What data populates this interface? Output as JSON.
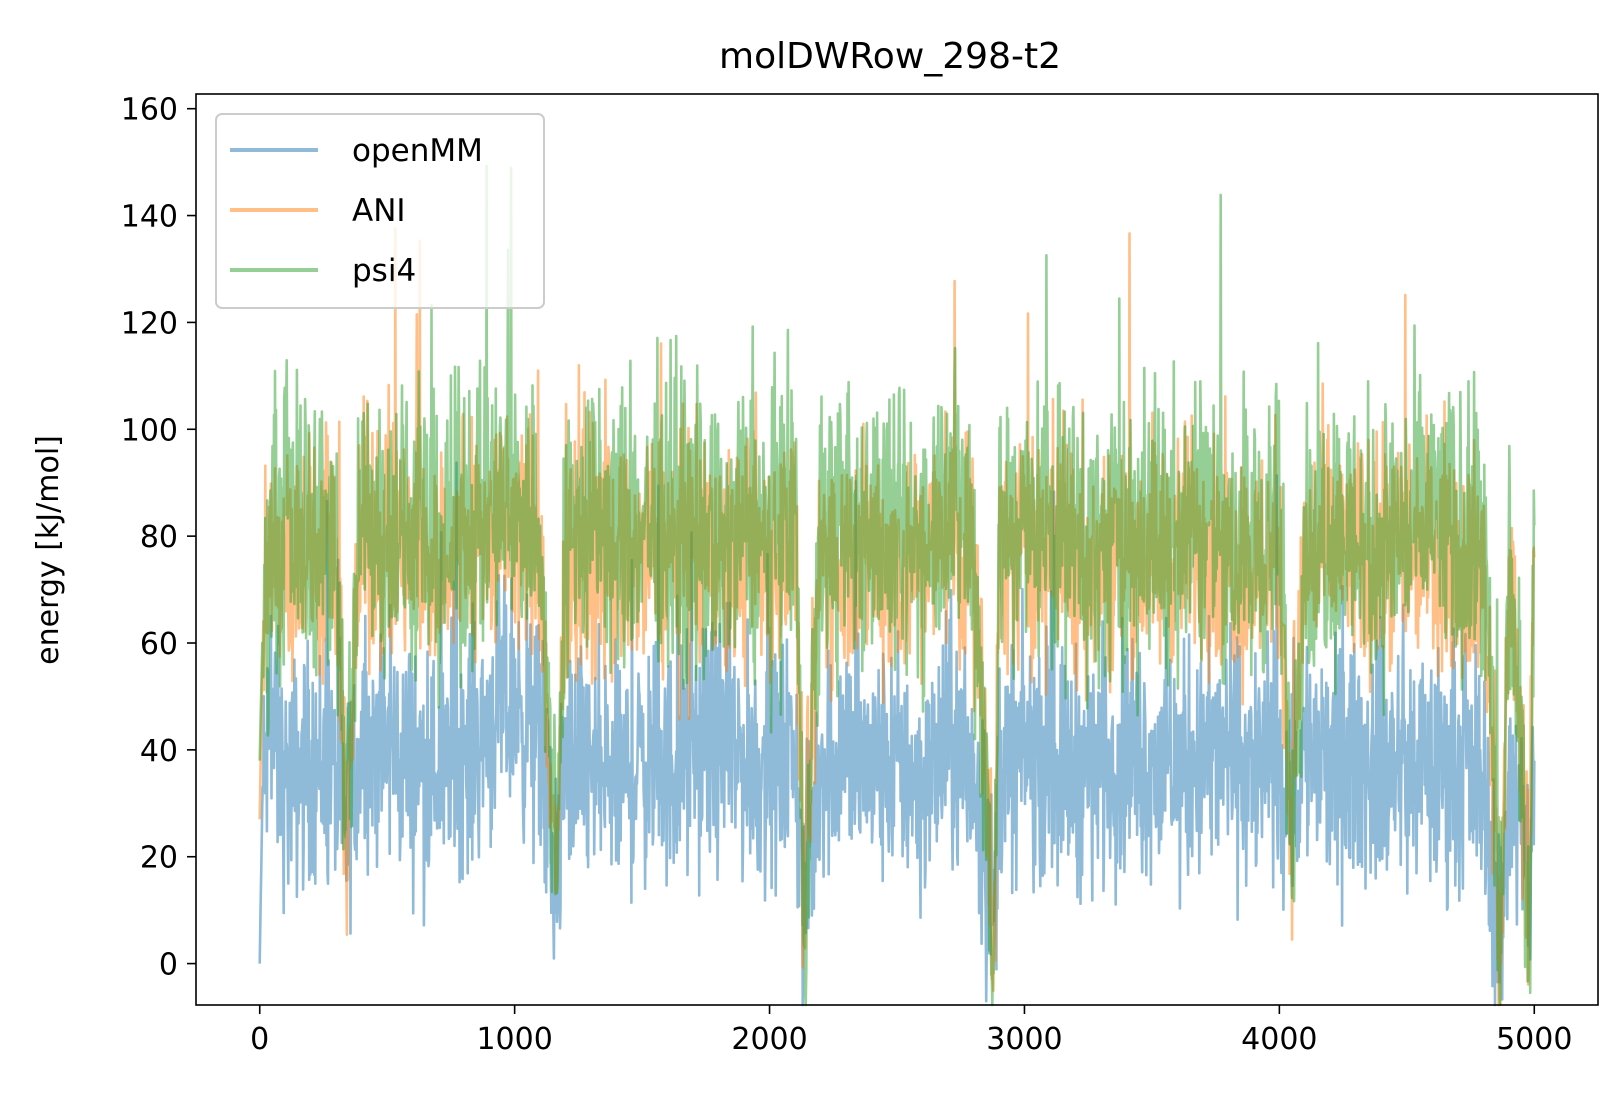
{
  "chart_data": {
    "type": "line",
    "title": "molDWRow_298-t2",
    "xlabel": "",
    "ylabel": "energy [kJ/mol]",
    "xlim": [
      -250,
      5250
    ],
    "ylim": [
      -7.75,
      162.75
    ],
    "x_ticks": [
      0,
      1000,
      2000,
      3000,
      4000,
      5000
    ],
    "y_ticks": [
      0,
      20,
      40,
      60,
      80,
      100,
      120,
      140,
      160
    ],
    "grid": false,
    "legend_position": "upper left",
    "x_range": [
      0,
      5000
    ],
    "series": [
      {
        "name": "openMM",
        "color": "#1f77b4",
        "alpha": 0.5,
        "points": [
          [
            0,
            0
          ],
          [
            10,
            30
          ],
          [
            40,
            45
          ],
          [
            100,
            33
          ],
          [
            200,
            38
          ],
          [
            300,
            35
          ],
          [
            335,
            24
          ],
          [
            400,
            42
          ],
          [
            500,
            40
          ],
          [
            600,
            38
          ],
          [
            700,
            36
          ],
          [
            800,
            40
          ],
          [
            900,
            45
          ],
          [
            1000,
            50
          ],
          [
            1100,
            40
          ],
          [
            1160,
            15
          ],
          [
            1200,
            38
          ],
          [
            1300,
            36
          ],
          [
            1400,
            34
          ],
          [
            1500,
            38
          ],
          [
            1600,
            36
          ],
          [
            1700,
            40
          ],
          [
            1800,
            42
          ],
          [
            1900,
            38
          ],
          [
            2000,
            36
          ],
          [
            2100,
            40
          ],
          [
            2135,
            10
          ],
          [
            2200,
            38
          ],
          [
            2300,
            40
          ],
          [
            2400,
            36
          ],
          [
            2500,
            38
          ],
          [
            2600,
            34
          ],
          [
            2700,
            40
          ],
          [
            2800,
            36
          ],
          [
            2880,
            8
          ],
          [
            2900,
            36
          ],
          [
            3000,
            40
          ],
          [
            3100,
            38
          ],
          [
            3200,
            36
          ],
          [
            3300,
            38
          ],
          [
            3400,
            40
          ],
          [
            3500,
            38
          ],
          [
            3600,
            36
          ],
          [
            3700,
            38
          ],
          [
            3800,
            40
          ],
          [
            3900,
            36
          ],
          [
            4000,
            38
          ],
          [
            4045,
            28
          ],
          [
            4100,
            40
          ],
          [
            4200,
            36
          ],
          [
            4300,
            38
          ],
          [
            4400,
            36
          ],
          [
            4500,
            38
          ],
          [
            4600,
            36
          ],
          [
            4700,
            38
          ],
          [
            4800,
            35
          ],
          [
            4870,
            2
          ],
          [
            4900,
            36
          ],
          [
            4980,
            15
          ],
          [
            5000,
            38
          ]
        ]
      },
      {
        "name": "ANI",
        "color": "#ff7f0e",
        "alpha": 0.5,
        "points": [
          [
            0,
            27
          ],
          [
            10,
            55
          ],
          [
            40,
            75
          ],
          [
            100,
            78
          ],
          [
            200,
            76
          ],
          [
            300,
            74
          ],
          [
            335,
            25
          ],
          [
            400,
            80
          ],
          [
            500,
            78
          ],
          [
            600,
            76
          ],
          [
            700,
            74
          ],
          [
            800,
            78
          ],
          [
            900,
            80
          ],
          [
            1000,
            82
          ],
          [
            1100,
            78
          ],
          [
            1160,
            14
          ],
          [
            1200,
            76
          ],
          [
            1300,
            78
          ],
          [
            1400,
            74
          ],
          [
            1500,
            76
          ],
          [
            1600,
            78
          ],
          [
            1700,
            76
          ],
          [
            1800,
            74
          ],
          [
            1900,
            78
          ],
          [
            2000,
            76
          ],
          [
            2100,
            80
          ],
          [
            2135,
            9
          ],
          [
            2200,
            78
          ],
          [
            2300,
            76
          ],
          [
            2400,
            78
          ],
          [
            2500,
            74
          ],
          [
            2600,
            76
          ],
          [
            2700,
            82
          ],
          [
            2800,
            76
          ],
          [
            2880,
            6
          ],
          [
            2900,
            76
          ],
          [
            3000,
            78
          ],
          [
            3100,
            80
          ],
          [
            3200,
            76
          ],
          [
            3300,
            74
          ],
          [
            3400,
            78
          ],
          [
            3500,
            76
          ],
          [
            3600,
            78
          ],
          [
            3700,
            80
          ],
          [
            3800,
            76
          ],
          [
            3900,
            74
          ],
          [
            4000,
            78
          ],
          [
            4045,
            27
          ],
          [
            4100,
            76
          ],
          [
            4200,
            78
          ],
          [
            4300,
            76
          ],
          [
            4400,
            74
          ],
          [
            4500,
            78
          ],
          [
            4600,
            80
          ],
          [
            4700,
            76
          ],
          [
            4800,
            74
          ],
          [
            4870,
            0
          ],
          [
            4900,
            76
          ],
          [
            4980,
            12
          ],
          [
            5000,
            76
          ]
        ]
      },
      {
        "name": "psi4",
        "color": "#2ca02c",
        "alpha": 0.5,
        "points": [
          [
            0,
            38
          ],
          [
            10,
            60
          ],
          [
            40,
            80
          ],
          [
            100,
            84
          ],
          [
            200,
            82
          ],
          [
            300,
            80
          ],
          [
            335,
            24
          ],
          [
            400,
            86
          ],
          [
            500,
            82
          ],
          [
            600,
            80
          ],
          [
            700,
            78
          ],
          [
            800,
            82
          ],
          [
            900,
            84
          ],
          [
            1000,
            86
          ],
          [
            1100,
            82
          ],
          [
            1160,
            13
          ],
          [
            1200,
            80
          ],
          [
            1300,
            84
          ],
          [
            1400,
            80
          ],
          [
            1500,
            82
          ],
          [
            1600,
            84
          ],
          [
            1700,
            80
          ],
          [
            1800,
            78
          ],
          [
            1900,
            82
          ],
          [
            2000,
            80
          ],
          [
            2100,
            86
          ],
          [
            2135,
            2
          ],
          [
            2200,
            82
          ],
          [
            2300,
            80
          ],
          [
            2400,
            84
          ],
          [
            2500,
            78
          ],
          [
            2600,
            80
          ],
          [
            2700,
            90
          ],
          [
            2800,
            80
          ],
          [
            2880,
            4
          ],
          [
            2900,
            80
          ],
          [
            3000,
            82
          ],
          [
            3100,
            84
          ],
          [
            3200,
            80
          ],
          [
            3300,
            78
          ],
          [
            3400,
            82
          ],
          [
            3500,
            80
          ],
          [
            3600,
            82
          ],
          [
            3700,
            86
          ],
          [
            3800,
            80
          ],
          [
            3900,
            78
          ],
          [
            4000,
            82
          ],
          [
            4045,
            26
          ],
          [
            4100,
            80
          ],
          [
            4200,
            82
          ],
          [
            4300,
            80
          ],
          [
            4400,
            78
          ],
          [
            4500,
            82
          ],
          [
            4600,
            84
          ],
          [
            4700,
            80
          ],
          [
            4800,
            78
          ],
          [
            4870,
            2
          ],
          [
            4900,
            80
          ],
          [
            4980,
            10
          ],
          [
            5000,
            82
          ]
        ]
      }
    ]
  }
}
